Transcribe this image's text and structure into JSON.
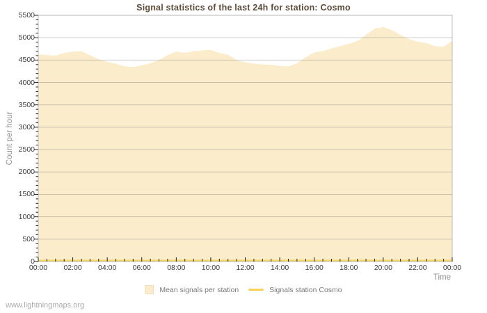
{
  "title": "Signal statistics of the last 24h for station: Cosmo",
  "watermark": "www.lightningmaps.org",
  "axes": {
    "y_title": "Count per hour",
    "x_title": "Time"
  },
  "legend": {
    "area_label": "Mean signals per station",
    "line_label": "Signals station Cosmo"
  },
  "colors": {
    "area_fill": "#fbeccb",
    "station_line": "#f7d35c",
    "grid_line": "rgba(130,130,130,0.42)",
    "frame": "#b8b8b8",
    "tick": "#222222",
    "title_text": "#5c4c3c",
    "axis_text": "#909090",
    "tick_text": "#3c3c3c"
  },
  "chart_data": {
    "type": "area",
    "title": "Signal statistics of the last 24h for station: Cosmo",
    "xlabel": "Time",
    "ylabel": "Count per hour",
    "xlim_hours": [
      0,
      24
    ],
    "ylim": [
      0,
      5500
    ],
    "grid": "horizontal",
    "legend_position": "bottom-center",
    "x_start_hour": 0,
    "x_step_hours": 0.5,
    "y_ticks": [
      {
        "value": 0,
        "label": "0"
      },
      {
        "value": 500,
        "label": "500"
      },
      {
        "value": 1000,
        "label": "1000"
      },
      {
        "value": 1500,
        "label": "1500"
      },
      {
        "value": 2000,
        "label": "2000"
      },
      {
        "value": 2500,
        "label": "2500"
      },
      {
        "value": 3000,
        "label": "3000"
      },
      {
        "value": 3500,
        "label": "3500"
      },
      {
        "value": 4000,
        "label": "4000"
      },
      {
        "value": 4500,
        "label": "4500"
      },
      {
        "value": 5000,
        "label": "5000"
      },
      {
        "value": 5500,
        "label": "5500"
      }
    ],
    "y_minor_step": 100,
    "x_ticks": [
      {
        "hour": 0,
        "label": "00:00"
      },
      {
        "hour": 2,
        "label": "02:00"
      },
      {
        "hour": 4,
        "label": "04:00"
      },
      {
        "hour": 6,
        "label": "06:00"
      },
      {
        "hour": 8,
        "label": "08:00"
      },
      {
        "hour": 10,
        "label": "10:00"
      },
      {
        "hour": 12,
        "label": "12:00"
      },
      {
        "hour": 14,
        "label": "14:00"
      },
      {
        "hour": 16,
        "label": "16:00"
      },
      {
        "hour": 18,
        "label": "18:00"
      },
      {
        "hour": 20,
        "label": "20:00"
      },
      {
        "hour": 22,
        "label": "22:00"
      },
      {
        "hour": 24,
        "label": "00:00"
      }
    ],
    "x_minor_step_hours": 0.5,
    "series": [
      {
        "name": "Mean signals per station",
        "type": "area",
        "color": "#fbeccb",
        "values": [
          4630,
          4610,
          4600,
          4660,
          4690,
          4700,
          4610,
          4520,
          4460,
          4420,
          4360,
          4345,
          4380,
          4430,
          4500,
          4610,
          4690,
          4660,
          4700,
          4710,
          4730,
          4660,
          4620,
          4500,
          4450,
          4420,
          4400,
          4395,
          4370,
          4360,
          4430,
          4560,
          4670,
          4700,
          4760,
          4810,
          4860,
          4930,
          5060,
          5200,
          5240,
          5170,
          5060,
          4970,
          4910,
          4880,
          4810,
          4800,
          4930
        ]
      },
      {
        "name": "Signals station Cosmo",
        "type": "line",
        "color": "#f7d35c",
        "values": [
          0,
          0,
          0,
          0,
          0,
          0,
          0,
          0,
          0,
          0,
          0,
          0,
          0,
          0,
          0,
          0,
          0,
          0,
          0,
          0,
          0,
          0,
          0,
          0,
          0,
          0,
          0,
          0,
          0,
          0,
          0,
          0,
          0,
          0,
          0,
          0,
          0,
          0,
          0,
          0,
          0,
          0,
          0,
          0,
          0,
          0,
          0,
          0,
          0
        ]
      }
    ]
  }
}
